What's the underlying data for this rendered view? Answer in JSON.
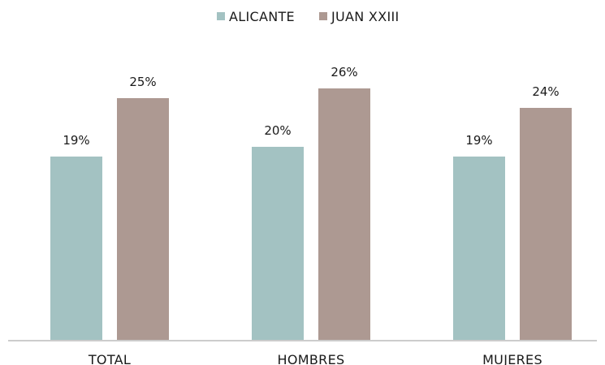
{
  "chart_data": {
    "type": "bar",
    "categories": [
      "TOTAL",
      "HOMBRES",
      "MUJERES"
    ],
    "series": [
      {
        "name": "ALICANTE",
        "color": "#a3c2c2",
        "values": [
          19,
          20,
          19
        ],
        "labels": [
          "19%",
          "20%",
          "19%"
        ]
      },
      {
        "name": "JUAN XXIII",
        "color": "#ad9992",
        "values": [
          25,
          26,
          24
        ],
        "labels": [
          "25%",
          "26%",
          "24%"
        ]
      }
    ],
    "title": "",
    "xlabel": "",
    "ylabel": "",
    "ylim": [
      0,
      30
    ],
    "grid": false,
    "legend_position": "top-center"
  }
}
